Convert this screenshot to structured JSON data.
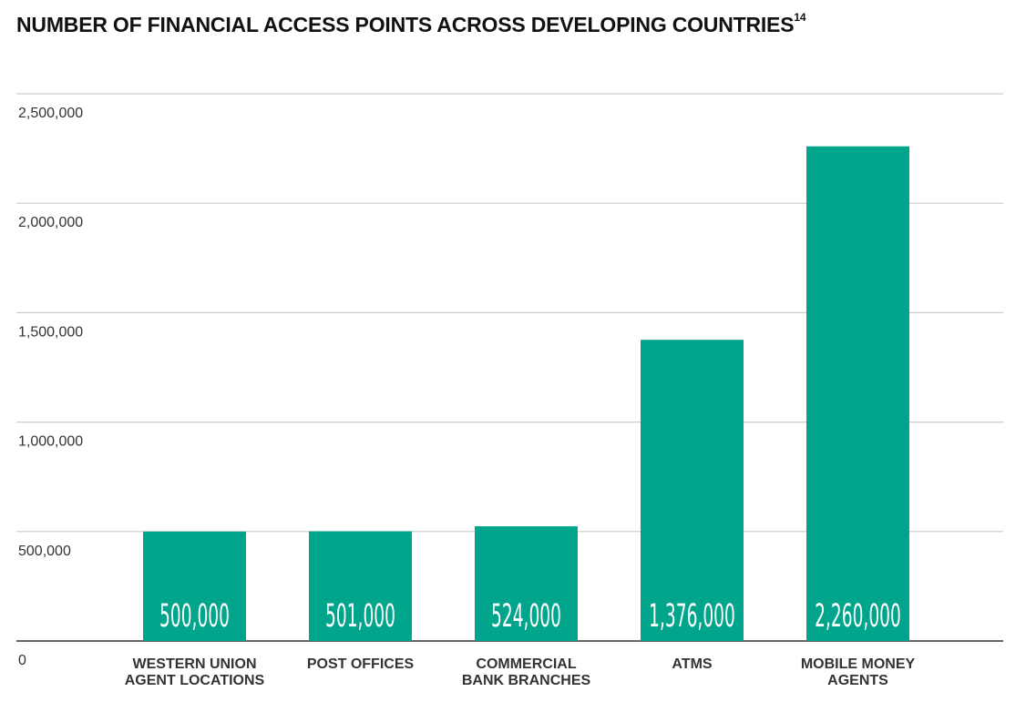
{
  "chart_data": {
    "type": "bar",
    "title": "NUMBER OF FINANCIAL ACCESS POINTS ACROSS DEVELOPING COUNTRIES",
    "title_footnote": "14",
    "categories": [
      [
        "WESTERN UNION",
        "AGENT LOCATIONS"
      ],
      [
        "POST OFFICES"
      ],
      [
        "COMMERCIAL",
        "BANK BRANCHES"
      ],
      [
        "ATMS"
      ],
      [
        "MOBILE MONEY",
        "AGENTS"
      ]
    ],
    "values": [
      500000,
      501000,
      524000,
      1376000,
      2260000
    ],
    "data_labels": [
      "500,000",
      "501,000",
      "524,000",
      "1,376,000",
      "2,260,000"
    ],
    "xlabel": "",
    "ylabel": "",
    "ylim": [
      0,
      2500000
    ],
    "yticks": [
      0,
      500000,
      1000000,
      1500000,
      2000000,
      2500000
    ],
    "ytick_labels": [
      "0",
      "500,000",
      "1,000,000",
      "1,500,000",
      "2,000,000",
      "2,500,000"
    ],
    "grid": true,
    "legend": "none",
    "bar_color": "#00a58b",
    "grid_color": "#cccccc",
    "baseline_color": "#333333"
  }
}
